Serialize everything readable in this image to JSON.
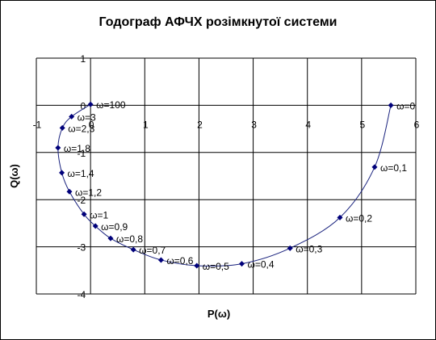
{
  "chart_data": {
    "type": "scatter",
    "title": "Годограф АФЧХ розімкнутої системи",
    "xlabel": "P(ω)",
    "ylabel": "Q(ω)",
    "xlim": [
      -1,
      6
    ],
    "ylim": [
      -4,
      1
    ],
    "xticks": [
      "-1",
      "0",
      "1",
      "2",
      "3",
      "4",
      "5",
      "6"
    ],
    "yticks": [
      "1",
      "0",
      "-1",
      "-2",
      "-3",
      "-4"
    ],
    "grid": true,
    "legend": "none",
    "line_color": "#1a237e",
    "marker_color": "#00007a",
    "points": [
      {
        "label": "ω=0",
        "x": 5.54,
        "y": 0.0
      },
      {
        "label": "ω=0,1",
        "x": 5.24,
        "y": -1.31
      },
      {
        "label": "ω=0,2",
        "x": 4.6,
        "y": -2.38
      },
      {
        "label": "ω=0,3",
        "x": 3.68,
        "y": -3.03
      },
      {
        "label": "ω=0,4",
        "x": 2.79,
        "y": -3.36
      },
      {
        "label": "ω=0,5",
        "x": 1.96,
        "y": -3.4
      },
      {
        "label": "ω=0,6",
        "x": 1.3,
        "y": -3.28
      },
      {
        "label": "ω=0,7",
        "x": 0.79,
        "y": -3.06
      },
      {
        "label": "ω=0,8",
        "x": 0.37,
        "y": -2.82
      },
      {
        "label": "ω=0,9",
        "x": 0.09,
        "y": -2.56
      },
      {
        "label": "ω=1",
        "x": -0.12,
        "y": -2.31
      },
      {
        "label": "ω=1,2",
        "x": -0.39,
        "y": -1.83
      },
      {
        "label": "ω=1,4",
        "x": -0.53,
        "y": -1.43
      },
      {
        "label": "ω=1,8",
        "x": -0.6,
        "y": -0.9
      },
      {
        "label": "ω=2,3",
        "x": -0.52,
        "y": -0.48
      },
      {
        "label": "ω=3",
        "x": -0.35,
        "y": -0.24
      },
      {
        "label": "ω=100",
        "x": 0.0,
        "y": 0.02
      }
    ]
  }
}
